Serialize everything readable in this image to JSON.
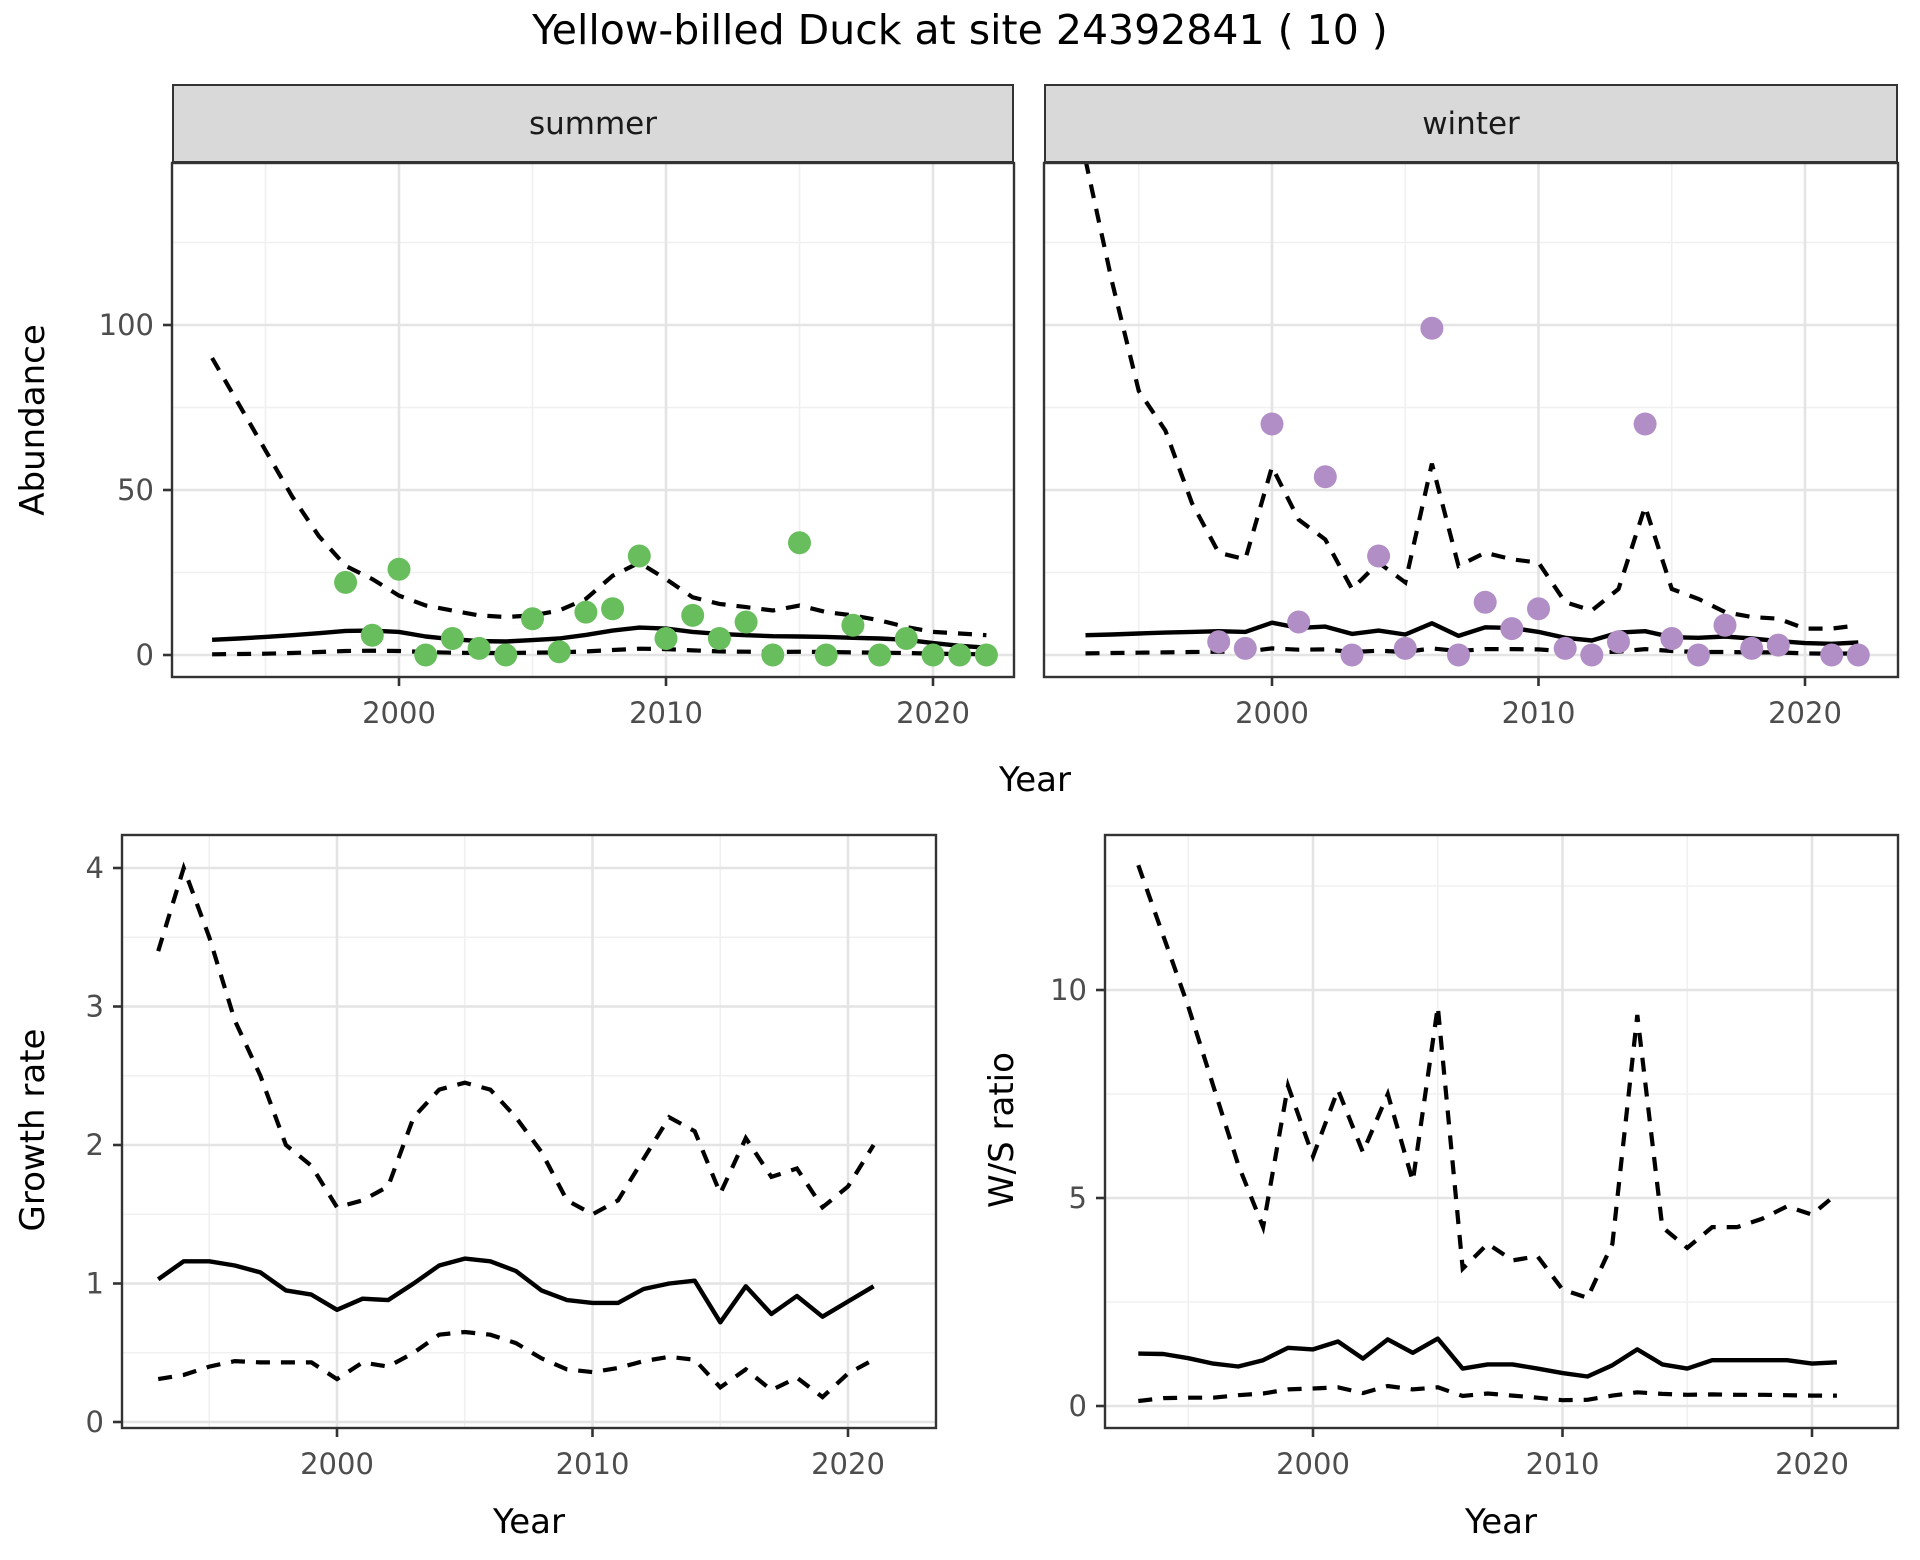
{
  "title": "Yellow-billed Duck at site 24392841 ( 10 )",
  "colors": {
    "summer_point": "#68be5d",
    "winter_point": "#b28ec6",
    "line": "#000000",
    "grid_major": "#e4e4e4",
    "grid_minor": "#f0f0f0",
    "strip_fill": "#d9d9d9",
    "panel_border": "#333333",
    "tick_label": "#4d4d4d"
  },
  "chart_data": [
    {
      "type": "scatter",
      "title": "Yellow-billed Duck at site 24392841 ( 10 )",
      "xlabel": "Year",
      "ylabel": "Abundance",
      "xticks": [
        2000,
        2010,
        2020
      ],
      "yticks": [
        0,
        50,
        100
      ],
      "xlim": [
        1991.5,
        2023.5
      ],
      "ylim": [
        -6.6,
        156
      ],
      "grid": "major+minor",
      "legend_position": "none",
      "line_meaning": {
        "solid": "estimated mean abundance",
        "dashed": "upper/lower confidence bounds"
      },
      "line_years": [
        1993,
        1994,
        1995,
        1996,
        1997,
        1998,
        1999,
        2000,
        2001,
        2002,
        2003,
        2004,
        2005,
        2006,
        2007,
        2008,
        2009,
        2010,
        2011,
        2012,
        2013,
        2014,
        2015,
        2016,
        2017,
        2018,
        2019,
        2020,
        2021,
        2022
      ],
      "facets": [
        {
          "label": "summer",
          "point_color": "#68be5d",
          "points": {
            "years": [
              1998,
              1999,
              2000,
              2001,
              2002,
              2003,
              2004,
              2005,
              2006,
              2007,
              2008,
              2009,
              2010,
              2011,
              2012,
              2013,
              2014,
              2015,
              2016,
              2017,
              2018,
              2019,
              2020,
              2021,
              2022
            ],
            "values": [
              22,
              6,
              26,
              0,
              5,
              2,
              0,
              11,
              1,
              13,
              14,
              30,
              5,
              12,
              5,
              10,
              0,
              34,
              0,
              9,
              0,
              5,
              0,
              0,
              0
            ]
          },
          "mean": [
            4.6,
            5.0,
            5.5,
            6.0,
            6.6,
            7.3,
            7.4,
            7.0,
            5.6,
            4.8,
            4.2,
            4.1,
            4.5,
            5.0,
            6.1,
            7.4,
            8.3,
            8.0,
            7.0,
            6.4,
            6.0,
            5.7,
            5.6,
            5.5,
            5.2,
            5.0,
            4.6,
            3.6,
            2.8,
            2.2
          ],
          "upper": [
            90,
            76,
            62,
            48,
            36,
            27,
            23,
            18,
            15,
            13.5,
            12,
            11.5,
            12,
            13.5,
            17,
            24,
            28,
            23,
            17.5,
            15.5,
            14.5,
            13.5,
            15,
            13,
            12,
            10.5,
            8.5,
            7,
            6.5,
            6
          ],
          "lower": [
            0.2,
            0.3,
            0.4,
            0.6,
            0.9,
            1.2,
            1.3,
            1.2,
            0.9,
            0.7,
            0.6,
            0.6,
            0.7,
            0.8,
            1.1,
            1.5,
            1.9,
            1.8,
            1.4,
            1.1,
            1.0,
            0.9,
            1.0,
            0.9,
            0.8,
            0.7,
            0.6,
            0.4,
            0.3,
            0.2
          ]
        },
        {
          "label": "winter",
          "point_color": "#b28ec6",
          "points": {
            "years": [
              1998,
              1999,
              2000,
              2001,
              2002,
              2003,
              2004,
              2005,
              2006,
              2007,
              2008,
              2009,
              2010,
              2011,
              2012,
              2013,
              2014,
              2015,
              2016,
              2017,
              2018,
              2019,
              2021,
              2022
            ],
            "values": [
              4,
              2,
              70,
              10,
              54,
              0,
              30,
              2,
              99,
              0,
              16,
              8,
              14,
              2,
              0,
              4,
              70,
              5,
              0,
              9,
              2,
              3,
              0,
              0
            ]
          },
          "mean": [
            6.0,
            6.2,
            6.5,
            6.8,
            7.0,
            7.2,
            7.0,
            9.8,
            8.2,
            8.6,
            6.4,
            7.4,
            6.2,
            9.6,
            5.8,
            8.4,
            8.2,
            7.0,
            5.2,
            4.4,
            6.8,
            7.2,
            5.4,
            5.2,
            5.6,
            5.0,
            4.2,
            3.6,
            3.4,
            3.8
          ],
          "upper": [
            150,
            113,
            80,
            68,
            46,
            31,
            29,
            57,
            41,
            35,
            20,
            28,
            22,
            58,
            27,
            31,
            29,
            28,
            16,
            13.5,
            20,
            45,
            20,
            17,
            13,
            11.5,
            11,
            8,
            8,
            9
          ],
          "lower": [
            0.5,
            0.6,
            0.7,
            0.8,
            0.9,
            1.0,
            1.0,
            2.0,
            1.6,
            1.7,
            0.9,
            1.3,
            0.9,
            2.0,
            1.2,
            1.8,
            1.8,
            1.7,
            1.1,
            0.8,
            1.0,
            1.8,
            1.2,
            0.9,
            0.9,
            0.8,
            0.8,
            0.5,
            0.4,
            0.5
          ]
        }
      ]
    },
    {
      "type": "line",
      "xlabel": "Year",
      "ylabel": "Growth rate",
      "xticks": [
        2000,
        2010,
        2020
      ],
      "yticks": [
        0,
        1,
        2,
        3,
        4
      ],
      "xlim": [
        1991.6,
        2023.2
      ],
      "ylim": [
        -0.05,
        4.28
      ],
      "grid": "major+minor",
      "legend_position": "none",
      "years": [
        1993,
        1994,
        1995,
        1996,
        1997,
        1998,
        1999,
        2000,
        2001,
        2002,
        2003,
        2004,
        2005,
        2006,
        2007,
        2008,
        2009,
        2010,
        2011,
        2012,
        2013,
        2014,
        2015,
        2016,
        2017,
        2018,
        2019,
        2020,
        2021
      ],
      "mean": [
        1.03,
        1.16,
        1.16,
        1.13,
        1.08,
        0.95,
        0.92,
        0.81,
        0.89,
        0.88,
        1.0,
        1.13,
        1.18,
        1.16,
        1.09,
        0.95,
        0.88,
        0.86,
        0.86,
        0.96,
        1.0,
        1.02,
        0.72,
        0.98,
        0.78,
        0.91,
        0.76,
        0.87,
        0.98
      ],
      "upper": [
        3.4,
        4.0,
        3.5,
        2.9,
        2.5,
        2.0,
        1.85,
        1.55,
        1.6,
        1.7,
        2.2,
        2.4,
        2.45,
        2.4,
        2.2,
        1.95,
        1.6,
        1.5,
        1.6,
        1.9,
        2.2,
        2.1,
        1.65,
        2.05,
        1.77,
        1.83,
        1.55,
        1.7,
        2.0
      ],
      "lower": [
        0.31,
        0.34,
        0.4,
        0.44,
        0.43,
        0.43,
        0.43,
        0.31,
        0.43,
        0.4,
        0.5,
        0.63,
        0.65,
        0.63,
        0.57,
        0.46,
        0.38,
        0.36,
        0.39,
        0.44,
        0.47,
        0.45,
        0.25,
        0.38,
        0.23,
        0.32,
        0.18,
        0.35,
        0.45
      ]
    },
    {
      "type": "line",
      "xlabel": "Year",
      "ylabel": "W/S ratio",
      "xticks": [
        2000,
        2010,
        2020
      ],
      "yticks": [
        0,
        5,
        10
      ],
      "xlim": [
        1991.7,
        2023.5
      ],
      "ylim": [
        -0.53,
        13.7
      ],
      "grid": "major+minor",
      "legend_position": "none",
      "years": [
        1993,
        1994,
        1995,
        1996,
        1997,
        1998,
        1999,
        2000,
        2001,
        2002,
        2003,
        2004,
        2005,
        2006,
        2007,
        2008,
        2009,
        2010,
        2011,
        2012,
        2013,
        2014,
        2015,
        2016,
        2017,
        2018,
        2019,
        2020,
        2021
      ],
      "mean": [
        1.26,
        1.25,
        1.15,
        1.02,
        0.95,
        1.1,
        1.4,
        1.36,
        1.55,
        1.14,
        1.6,
        1.28,
        1.62,
        0.9,
        1.0,
        1.0,
        0.9,
        0.79,
        0.71,
        0.98,
        1.36,
        1.0,
        0.9,
        1.1,
        1.1,
        1.1,
        1.1,
        1.02,
        1.05
      ],
      "upper": [
        13.0,
        11.3,
        9.6,
        7.7,
        5.8,
        4.3,
        7.7,
        6.0,
        7.6,
        6.1,
        7.5,
        5.4,
        9.6,
        3.3,
        3.9,
        3.5,
        3.6,
        2.8,
        2.6,
        3.9,
        9.4,
        4.3,
        3.8,
        4.3,
        4.3,
        4.5,
        4.8,
        4.6,
        5.1
      ],
      "lower": [
        0.12,
        0.19,
        0.2,
        0.2,
        0.26,
        0.3,
        0.4,
        0.42,
        0.45,
        0.31,
        0.48,
        0.4,
        0.45,
        0.24,
        0.3,
        0.25,
        0.2,
        0.14,
        0.15,
        0.25,
        0.33,
        0.29,
        0.27,
        0.28,
        0.27,
        0.27,
        0.26,
        0.25,
        0.25
      ]
    }
  ]
}
